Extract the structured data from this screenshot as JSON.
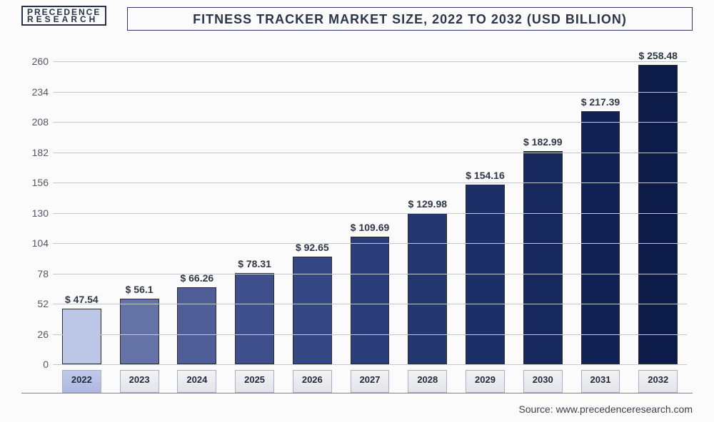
{
  "logo": {
    "top": "PRECEDENCE",
    "bottom": "RESEARCH"
  },
  "title": "FITNESS TRACKER MARKET SIZE, 2022 TO 2032 (USD BILLION)",
  "source": "Source: www.precedenceresearch.com",
  "chart": {
    "type": "bar",
    "ylim": [
      0,
      270
    ],
    "yticks": [
      0,
      26,
      52,
      78,
      104,
      130,
      156,
      182,
      208,
      234,
      260
    ],
    "grid_color": "#c4c8cf",
    "background_color": "#fbfbfc",
    "bar_colors": [
      "#bcc7e8",
      "#6472a5",
      "#4f5e97",
      "#3f4f8c",
      "#344683",
      "#2b3e79",
      "#233670",
      "#1c2f66",
      "#16285c",
      "#112153",
      "#0d1b48"
    ],
    "categories": [
      "2022",
      "2023",
      "2024",
      "2025",
      "2026",
      "2027",
      "2028",
      "2029",
      "2030",
      "2031",
      "2032"
    ],
    "labels": [
      "$ 47.54",
      "$ 56.1",
      "$ 66.26",
      "$ 78.31",
      "$ 92.65",
      "$ 109.69",
      "$ 129.98",
      "$ 154.16",
      "$ 182.99",
      "$ 217.39",
      "$ 258.48"
    ],
    "values": [
      47.54,
      56.1,
      66.26,
      78.31,
      92.65,
      109.69,
      129.98,
      154.16,
      182.99,
      217.39,
      258.48
    ],
    "title_fontsize": 18,
    "label_fontsize": 14,
    "tick_fontsize": 14,
    "bar_width": 0.68
  }
}
